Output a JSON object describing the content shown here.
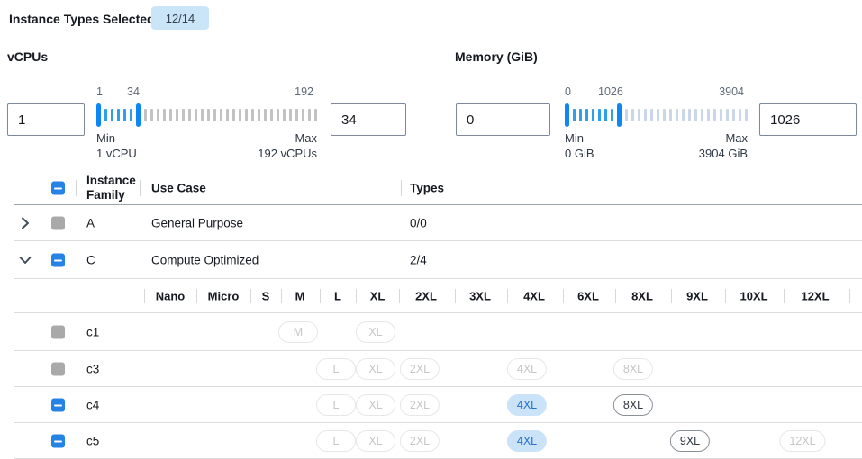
{
  "selection_bar": {
    "label": "Instance Types Selected:",
    "badge": "12/14"
  },
  "vcpu_filter": {
    "title": "vCPUs",
    "from_value": "1",
    "to_value": "34",
    "scale": [
      "1",
      "34",
      "192"
    ],
    "min_label": "Min",
    "min_caption": "1 vCPU",
    "max_label": "Max",
    "max_caption": "192 vCPUs"
  },
  "memory_filter": {
    "title": "Memory (GiB)",
    "from_value": "0",
    "to_value": "1026",
    "scale": [
      "0",
      "1026",
      "3904"
    ],
    "min_label": "Min",
    "min_caption": "0 GiB",
    "max_label": "Max",
    "max_caption": "3904 GiB"
  },
  "table": {
    "headers": {
      "family": "Instance Family",
      "use_case": "Use Case",
      "types": "Types"
    },
    "family_rows": [
      {
        "family": "A",
        "use_case": "General Purpose",
        "types": "0/0",
        "expanded": false,
        "checkbox": "unchecked-disabled"
      },
      {
        "family": "C",
        "use_case": "Compute Optimized",
        "types": "2/4",
        "expanded": true,
        "checkbox": "indeterminate"
      }
    ],
    "size_headers": [
      "Nano",
      "Micro",
      "S",
      "M",
      "L",
      "XL",
      "2XL",
      "3XL",
      "4XL",
      "6XL",
      "8XL",
      "9XL",
      "10XL",
      "12XL"
    ],
    "instance_rows": [
      {
        "name": "c1",
        "checkbox": "unchecked-disabled",
        "pills": [
          {
            "label": "M",
            "state": "disabled"
          },
          {
            "label": "XL",
            "state": "disabled"
          }
        ]
      },
      {
        "name": "c3",
        "checkbox": "unchecked-disabled",
        "pills": [
          {
            "label": "L",
            "state": "disabled"
          },
          {
            "label": "XL",
            "state": "disabled"
          },
          {
            "label": "2XL",
            "state": "disabled"
          },
          {
            "label": "4XL",
            "state": "disabled"
          },
          {
            "label": "8XL",
            "state": "disabled"
          }
        ]
      },
      {
        "name": "c4",
        "checkbox": "indeterminate",
        "pills": [
          {
            "label": "L",
            "state": "disabled"
          },
          {
            "label": "XL",
            "state": "disabled"
          },
          {
            "label": "2XL",
            "state": "disabled"
          },
          {
            "label": "4XL",
            "state": "selected"
          },
          {
            "label": "8XL",
            "state": "available"
          }
        ]
      },
      {
        "name": "c5",
        "checkbox": "indeterminate",
        "pills": [
          {
            "label": "L",
            "state": "disabled"
          },
          {
            "label": "XL",
            "state": "disabled"
          },
          {
            "label": "2XL",
            "state": "disabled"
          },
          {
            "label": "4XL",
            "state": "selected"
          },
          {
            "label": "9XL",
            "state": "available"
          },
          {
            "label": "12XL",
            "state": "disabled"
          }
        ]
      }
    ]
  },
  "colors": {
    "accent_blue": "#2583e3",
    "badge_bg": "#cbe5f8",
    "slider_handle": "#0f87f2",
    "slider_active_tick": "#2f9fe8",
    "slider_inactive_tick_vcpu": "#c2c2c2",
    "slider_inactive_tick_memory": "#ccd6ea",
    "selected_pill_bg": "#cbe3f9",
    "selected_pill_text": "#2272cc"
  }
}
